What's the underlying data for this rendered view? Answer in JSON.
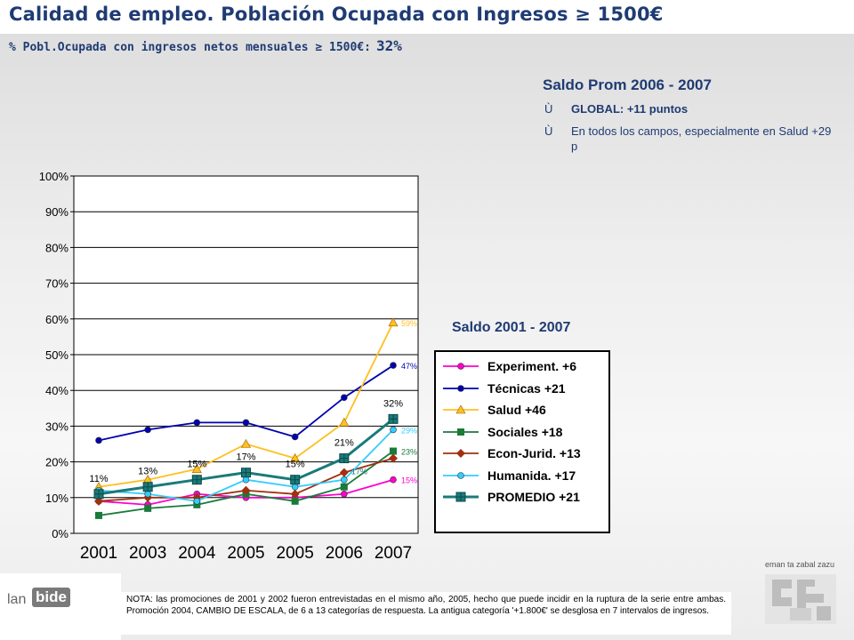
{
  "header": {
    "title": "Calidad de empleo. Población Ocupada con Ingresos ≥ 1500€",
    "subtitle": "% Pobl.Ocupada con ingresos netos mensuales ≥ 1500€:",
    "subtitle_value": "32%"
  },
  "summary": {
    "heading": "Saldo Prom 2006 - 2007",
    "bullets": [
      {
        "mark": "Ù",
        "text": "GLOBAL: +11 puntos"
      },
      {
        "mark": "Ù",
        "text": "En todos los campos, especialmente en Salud +29 p"
      }
    ]
  },
  "saldo_label": "Saldo 2001 - 2007",
  "note": "NOTA: las promociones de 2001 y 2002 fueron entrevistadas en el mismo año, 2005, hecho que puede incidir en la ruptura de la serie entre ambas. Promoción 2004, CAMBIO DE ESCALA, de 6 a 13 categorías de respuesta. La antigua categoría '+1.800€' se desglosa en 7 intervalos de ingresos.",
  "footer": {
    "logo_lan": "lan",
    "logo_bide": "bide",
    "gov_tag": "eman ta zabal zazu"
  },
  "chart_data": {
    "type": "line",
    "categories": [
      "2001",
      "2003",
      "2004",
      "2005",
      "2005",
      "2006",
      "2007"
    ],
    "ylim": [
      0,
      100
    ],
    "yticks": [
      "0%",
      "10%",
      "20%",
      "30%",
      "40%",
      "50%",
      "60%",
      "70%",
      "80%",
      "90%",
      "100%"
    ],
    "grid": true,
    "legend_position": "right",
    "series": [
      {
        "name": "Experiment. +6",
        "color": "#ff00cc",
        "marker": "circle",
        "values": [
          9,
          8,
          11,
          10,
          10,
          11,
          15
        ],
        "end_label": "15%"
      },
      {
        "name": "Técnicas +21",
        "color": "#0000b0",
        "marker": "circle",
        "values": [
          26,
          29,
          31,
          31,
          27,
          38,
          47
        ],
        "end_label": "47%"
      },
      {
        "name": "Salud +46",
        "color": "#ffc020",
        "marker": "triangle",
        "values": [
          13,
          15,
          18,
          25,
          21,
          31,
          59
        ],
        "end_label": "59%"
      },
      {
        "name": "Sociales +18",
        "color": "#1a7a3a",
        "marker": "square",
        "values": [
          5,
          7,
          8,
          11,
          9,
          13,
          23
        ],
        "end_label": "23%"
      },
      {
        "name": "Econ-Jurid. +13",
        "color": "#a03010",
        "marker": "diamond",
        "values": [
          9,
          10,
          10,
          12,
          11,
          17,
          21
        ],
        "end_label": ""
      },
      {
        "name": "Humanida. +17",
        "color": "#33ccff",
        "marker": "circle",
        "values": [
          12,
          11,
          9,
          15,
          13,
          15,
          29
        ],
        "end_label": "29%"
      },
      {
        "name": "PROMEDIO +21",
        "color": "#1a7a7a",
        "marker": "bigsquare",
        "values": [
          11,
          13,
          15,
          17,
          15,
          21,
          32
        ],
        "end_label": ""
      }
    ],
    "data_labels": [
      "11%",
      "13%",
      "15%",
      "17%",
      "15%",
      "21%",
      "32%"
    ],
    "extra_labels": [
      "17%"
    ]
  }
}
